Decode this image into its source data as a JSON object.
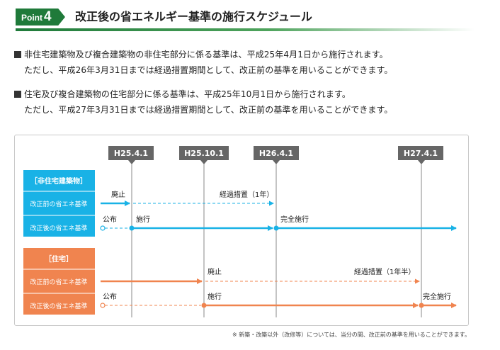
{
  "header": {
    "badge_word": "Point",
    "badge_num": "4",
    "title": "改正後の省エネルギー基準の施行スケジュール"
  },
  "paragraphs": [
    {
      "line1": "非住宅建築物及び複合建築物の非住宅部分に係る基準は、平成25年4月1日から施行されます。",
      "line2": "ただし、平成26年3月31日までは経過措置期間として、改正前の基準を用いることができます。"
    },
    {
      "line1": "住宅及び複合建築物の住宅部分に係る基準は、平成25年10月1日から施行されます。",
      "line2": "ただし、平成27年3月31日までは経過措置期間として、改正前の基準を用いることができます。"
    }
  ],
  "timeline": {
    "dates": [
      "H25.4.1",
      "H25.10.1",
      "H26.4.1",
      "H27.4.1"
    ],
    "non_residential": {
      "heading": "［非住宅建築物］",
      "row_old": "改正前の省エネ基準",
      "row_new": "改正後の省エネ基準",
      "abolish": "廃止",
      "transition": "経過措置（1年）",
      "announce": "公布",
      "enforce": "施行",
      "full_enforce": "完全施行"
    },
    "residential": {
      "heading": "［住宅］",
      "row_old": "改正前の省エネ基準",
      "row_new": "改正後の省エネ基準",
      "abolish": "廃止",
      "transition": "経過措置（1年半）",
      "announce": "公布",
      "enforce": "施行",
      "full_enforce": "完全施行"
    },
    "colors": {
      "blue": "#19b2e6",
      "orange": "#f0844f",
      "gray": "#666666",
      "green": "#1f7a3a"
    }
  },
  "footnote": "※ 新築・改築以外（改修等）については、当分の間、改正前の基準を用いることができます。"
}
